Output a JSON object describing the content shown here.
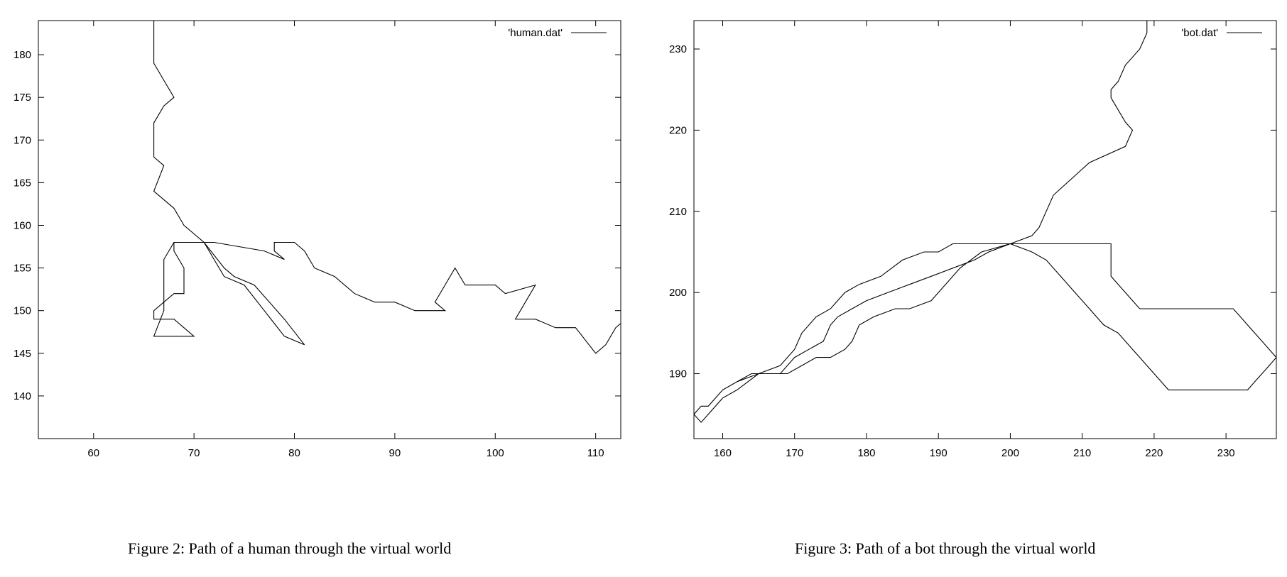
{
  "chart_data": [
    {
      "type": "line",
      "legend": "'human.dat'",
      "legend_position": "top-right",
      "grid": false,
      "xlim": [
        54.5,
        112.5
      ],
      "ylim": [
        135,
        184
      ],
      "x_ticks": [
        60,
        70,
        80,
        90,
        100,
        110
      ],
      "y_ticks": [
        140,
        145,
        150,
        155,
        160,
        165,
        170,
        175,
        180
      ],
      "caption": "Figure 2: Path of a human through the virtual world",
      "series": [
        {
          "name": "'human.dat'",
          "points": [
            [
              66,
              184
            ],
            [
              66,
              179
            ],
            [
              67,
              177
            ],
            [
              68,
              175
            ],
            [
              67,
              174
            ],
            [
              66,
              172
            ],
            [
              66,
              168
            ],
            [
              67,
              167
            ],
            [
              66,
              164
            ],
            [
              68,
              162
            ],
            [
              69,
              160
            ],
            [
              71,
              158
            ],
            [
              72,
              156
            ],
            [
              73,
              154
            ],
            [
              75,
              153
            ],
            [
              77,
              150
            ],
            [
              79,
              147
            ],
            [
              81,
              146
            ],
            [
              79,
              149
            ],
            [
              76,
              153
            ],
            [
              74,
              154
            ],
            [
              73,
              155
            ],
            [
              71,
              158
            ],
            [
              68,
              158
            ],
            [
              67,
              156
            ],
            [
              67,
              153
            ],
            [
              67,
              150
            ],
            [
              66,
              147
            ],
            [
              67,
              147
            ],
            [
              68,
              147
            ],
            [
              69,
              147
            ],
            [
              70,
              147
            ],
            [
              68,
              149
            ],
            [
              67,
              149
            ],
            [
              66,
              149
            ],
            [
              66,
              150
            ],
            [
              67,
              151
            ],
            [
              68,
              152
            ],
            [
              69,
              152
            ],
            [
              69,
              153
            ],
            [
              69,
              155
            ],
            [
              68,
              157
            ],
            [
              68,
              158
            ],
            [
              72,
              158
            ],
            [
              77,
              157
            ],
            [
              79,
              156
            ],
            [
              78,
              157
            ],
            [
              78,
              158
            ],
            [
              80,
              158
            ],
            [
              81,
              157
            ],
            [
              82,
              155
            ],
            [
              84,
              154
            ],
            [
              86,
              152
            ],
            [
              88,
              151
            ],
            [
              90,
              151
            ],
            [
              92,
              150
            ],
            [
              94,
              150
            ],
            [
              95,
              150
            ],
            [
              94,
              151
            ],
            [
              96,
              155
            ],
            [
              97,
              153
            ],
            [
              100,
              153
            ],
            [
              101,
              152
            ],
            [
              104,
              153
            ],
            [
              103,
              151
            ],
            [
              102,
              149
            ],
            [
              104,
              149
            ],
            [
              106,
              148
            ],
            [
              108,
              148
            ],
            [
              110,
              145
            ],
            [
              111,
              146
            ],
            [
              112,
              148
            ],
            [
              113,
              149
            ]
          ]
        }
      ]
    },
    {
      "type": "line",
      "legend": "'bot.dat'",
      "legend_position": "top-right",
      "grid": false,
      "xlim": [
        156,
        237
      ],
      "ylim": [
        182,
        233.5
      ],
      "x_ticks": [
        160,
        170,
        180,
        190,
        200,
        210,
        220,
        230
      ],
      "y_ticks": [
        190,
        200,
        210,
        220,
        230
      ],
      "caption": "Figure 3: Path of a bot through the virtual world",
      "series": [
        {
          "name": "'bot.dat'",
          "points": [
            [
              219,
              235
            ],
            [
              219,
              232
            ],
            [
              218,
              230
            ],
            [
              216,
              228
            ],
            [
              215,
              226
            ],
            [
              214,
              225
            ],
            [
              214,
              224
            ],
            [
              216,
              221
            ],
            [
              217,
              220
            ],
            [
              216,
              218
            ],
            [
              211,
              216
            ],
            [
              206,
              212
            ],
            [
              205,
              210
            ],
            [
              204,
              208
            ],
            [
              203,
              207
            ],
            [
              200,
              206
            ],
            [
              197,
              205
            ],
            [
              195,
              204
            ],
            [
              192,
              203
            ],
            [
              189,
              202
            ],
            [
              186,
              201
            ],
            [
              183,
              200
            ],
            [
              180,
              199
            ],
            [
              178,
              198
            ],
            [
              176,
              197
            ],
            [
              175,
              196
            ],
            [
              174,
              194
            ],
            [
              172,
              193
            ],
            [
              170,
              192
            ],
            [
              168,
              190
            ],
            [
              165,
              190
            ],
            [
              162,
              189
            ],
            [
              160,
              188
            ],
            [
              159,
              187
            ],
            [
              158,
              186
            ],
            [
              157,
              186
            ],
            [
              156,
              185
            ],
            [
              157,
              184
            ],
            [
              158,
              185
            ],
            [
              160,
              187
            ],
            [
              162,
              188
            ],
            [
              165,
              190
            ],
            [
              168,
              191
            ],
            [
              170,
              193
            ],
            [
              171,
              195
            ],
            [
              173,
              197
            ],
            [
              175,
              198
            ],
            [
              177,
              200
            ],
            [
              179,
              201
            ],
            [
              182,
              202
            ],
            [
              185,
              204
            ],
            [
              188,
              205
            ],
            [
              190,
              205
            ],
            [
              192,
              206
            ],
            [
              195,
              206
            ],
            [
              198,
              206
            ],
            [
              201,
              206
            ],
            [
              205,
              206
            ],
            [
              210,
              206
            ],
            [
              214,
              206
            ],
            [
              214,
              204
            ],
            [
              214,
              202
            ],
            [
              215,
              201
            ],
            [
              216,
              200
            ],
            [
              217,
              199
            ],
            [
              218,
              198
            ],
            [
              221,
              198
            ],
            [
              224,
              198
            ],
            [
              228,
              198
            ],
            [
              231,
              198
            ],
            [
              232,
              197
            ],
            [
              233,
              196
            ],
            [
              234,
              195
            ],
            [
              235,
              194
            ],
            [
              236,
              193
            ],
            [
              237,
              192
            ],
            [
              236,
              191
            ],
            [
              235,
              190
            ],
            [
              234,
              189
            ],
            [
              233,
              188
            ],
            [
              230,
              188
            ],
            [
              226,
              188
            ],
            [
              222,
              188
            ],
            [
              221,
              189
            ],
            [
              220,
              190
            ],
            [
              219,
              191
            ],
            [
              218,
              192
            ],
            [
              217,
              193
            ],
            [
              216,
              194
            ],
            [
              215,
              195
            ],
            [
              213,
              196
            ],
            [
              211,
              198
            ],
            [
              209,
              200
            ],
            [
              207,
              202
            ],
            [
              205,
              204
            ],
            [
              203,
              205
            ],
            [
              200,
              206
            ],
            [
              196,
              205
            ],
            [
              193,
              203
            ],
            [
              191,
              201
            ],
            [
              189,
              199
            ],
            [
              186,
              198
            ],
            [
              184,
              198
            ],
            [
              181,
              197
            ],
            [
              179,
              196
            ],
            [
              178,
              194
            ],
            [
              177,
              193
            ],
            [
              175,
              192
            ],
            [
              173,
              192
            ],
            [
              171,
              191
            ],
            [
              169,
              190
            ],
            [
              167,
              190
            ],
            [
              164,
              190
            ],
            [
              162,
              189
            ],
            [
              160,
              188
            ]
          ]
        }
      ]
    }
  ]
}
